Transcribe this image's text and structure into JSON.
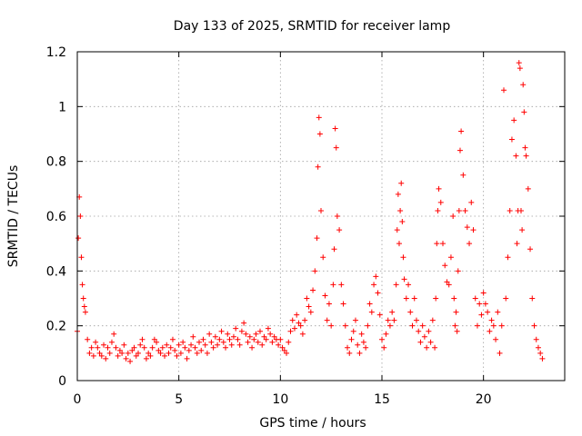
{
  "chart_data": {
    "type": "scatter",
    "title": "Day 133 of 2025, SRMTID for receiver lamp",
    "xlabel": "GPS time / hours",
    "ylabel": "SRMTID / TECUs",
    "xlim": [
      0,
      24
    ],
    "ylim": [
      0,
      1.2
    ],
    "x_ticks": [
      0,
      5,
      10,
      15,
      20
    ],
    "x_tick_labels": [
      "0",
      "5",
      "10",
      "15",
      "20"
    ],
    "y_ticks": [
      0,
      0.2,
      0.4,
      0.6,
      0.8,
      1.0,
      1.2
    ],
    "y_tick_labels": [
      "0",
      "0.2",
      "0.4",
      "0.6",
      "0.8",
      "1",
      "1.2"
    ],
    "grid": true,
    "marker": "plus",
    "color": "#ff0000",
    "series": [
      {
        "name": "SRMTID",
        "x": [
          0.0,
          0.05,
          0.1,
          0.15,
          0.2,
          0.25,
          0.3,
          0.35,
          0.4,
          0.5,
          0.6,
          0.7,
          0.8,
          0.9,
          1.0,
          1.1,
          1.2,
          1.3,
          1.4,
          1.5,
          1.6,
          1.7,
          1.8,
          1.9,
          2.0,
          2.1,
          2.2,
          2.3,
          2.4,
          2.5,
          2.6,
          2.7,
          2.8,
          2.9,
          3.0,
          3.1,
          3.2,
          3.3,
          3.4,
          3.5,
          3.6,
          3.7,
          3.8,
          3.9,
          4.0,
          4.1,
          4.2,
          4.3,
          4.4,
          4.5,
          4.6,
          4.7,
          4.8,
          4.9,
          5.0,
          5.1,
          5.2,
          5.3,
          5.4,
          5.5,
          5.6,
          5.7,
          5.8,
          5.9,
          6.0,
          6.1,
          6.2,
          6.3,
          6.4,
          6.5,
          6.6,
          6.7,
          6.8,
          6.9,
          7.0,
          7.1,
          7.2,
          7.3,
          7.4,
          7.5,
          7.6,
          7.7,
          7.8,
          7.9,
          8.0,
          8.1,
          8.2,
          8.3,
          8.4,
          8.5,
          8.6,
          8.7,
          8.8,
          8.9,
          9.0,
          9.1,
          9.2,
          9.3,
          9.4,
          9.5,
          9.6,
          9.7,
          9.8,
          9.9,
          10.0,
          10.1,
          10.2,
          10.3,
          10.4,
          10.5,
          10.6,
          10.7,
          10.8,
          10.9,
          11.0,
          11.1,
          11.2,
          11.3,
          11.4,
          11.5,
          11.6,
          11.7,
          11.8,
          11.85,
          11.9,
          11.95,
          12.0,
          12.1,
          12.2,
          12.3,
          12.4,
          12.5,
          12.6,
          12.65,
          12.7,
          12.75,
          12.8,
          12.9,
          13.0,
          13.1,
          13.2,
          13.3,
          13.4,
          13.5,
          13.6,
          13.7,
          13.8,
          13.9,
          14.0,
          14.1,
          14.2,
          14.3,
          14.4,
          14.5,
          14.6,
          14.7,
          14.8,
          14.9,
          15.0,
          15.1,
          15.2,
          15.3,
          15.4,
          15.5,
          15.6,
          15.7,
          15.75,
          15.8,
          15.85,
          15.9,
          15.95,
          16.0,
          16.05,
          16.1,
          16.2,
          16.3,
          16.4,
          16.5,
          16.6,
          16.7,
          16.8,
          16.9,
          17.0,
          17.1,
          17.2,
          17.3,
          17.4,
          17.5,
          17.6,
          17.65,
          17.7,
          17.75,
          17.8,
          17.9,
          18.0,
          18.1,
          18.2,
          18.3,
          18.4,
          18.5,
          18.55,
          18.6,
          18.65,
          18.7,
          18.75,
          18.8,
          18.85,
          18.9,
          19.0,
          19.1,
          19.2,
          19.3,
          19.4,
          19.5,
          19.6,
          19.7,
          19.8,
          19.9,
          20.0,
          20.1,
          20.2,
          20.3,
          20.4,
          20.5,
          20.6,
          20.7,
          20.8,
          20.9,
          21.0,
          21.1,
          21.2,
          21.3,
          21.4,
          21.5,
          21.6,
          21.65,
          21.7,
          21.75,
          21.8,
          21.85,
          21.9,
          21.95,
          22.0,
          22.05,
          22.1,
          22.2,
          22.3,
          22.4,
          22.5,
          22.6,
          22.7,
          22.8,
          22.9
        ],
        "y": [
          0.18,
          0.52,
          0.67,
          0.6,
          0.45,
          0.35,
          0.3,
          0.27,
          0.25,
          0.15,
          0.1,
          0.12,
          0.09,
          0.14,
          0.12,
          0.1,
          0.09,
          0.13,
          0.08,
          0.12,
          0.1,
          0.14,
          0.17,
          0.12,
          0.09,
          0.11,
          0.1,
          0.13,
          0.08,
          0.1,
          0.07,
          0.11,
          0.12,
          0.09,
          0.1,
          0.13,
          0.15,
          0.12,
          0.08,
          0.1,
          0.09,
          0.12,
          0.15,
          0.14,
          0.11,
          0.1,
          0.12,
          0.09,
          0.13,
          0.1,
          0.12,
          0.15,
          0.11,
          0.09,
          0.13,
          0.1,
          0.14,
          0.12,
          0.08,
          0.11,
          0.13,
          0.16,
          0.12,
          0.1,
          0.14,
          0.11,
          0.15,
          0.13,
          0.1,
          0.17,
          0.14,
          0.12,
          0.16,
          0.13,
          0.15,
          0.18,
          0.14,
          0.12,
          0.17,
          0.15,
          0.13,
          0.16,
          0.19,
          0.15,
          0.13,
          0.18,
          0.21,
          0.17,
          0.14,
          0.16,
          0.12,
          0.15,
          0.17,
          0.14,
          0.18,
          0.13,
          0.16,
          0.15,
          0.19,
          0.17,
          0.14,
          0.16,
          0.15,
          0.13,
          0.15,
          0.12,
          0.11,
          0.1,
          0.14,
          0.18,
          0.22,
          0.19,
          0.24,
          0.21,
          0.2,
          0.17,
          0.22,
          0.3,
          0.27,
          0.25,
          0.33,
          0.4,
          0.52,
          0.78,
          0.96,
          0.9,
          0.62,
          0.45,
          0.31,
          0.22,
          0.28,
          0.2,
          0.35,
          0.48,
          0.92,
          0.85,
          0.6,
          0.55,
          0.35,
          0.28,
          0.2,
          0.12,
          0.1,
          0.15,
          0.18,
          0.22,
          0.13,
          0.1,
          0.17,
          0.14,
          0.12,
          0.2,
          0.28,
          0.25,
          0.35,
          0.38,
          0.32,
          0.24,
          0.15,
          0.12,
          0.17,
          0.22,
          0.2,
          0.25,
          0.22,
          0.35,
          0.55,
          0.68,
          0.5,
          0.62,
          0.72,
          0.58,
          0.45,
          0.37,
          0.3,
          0.35,
          0.25,
          0.2,
          0.3,
          0.22,
          0.18,
          0.14,
          0.2,
          0.16,
          0.12,
          0.18,
          0.14,
          0.22,
          0.12,
          0.3,
          0.5,
          0.62,
          0.7,
          0.65,
          0.5,
          0.42,
          0.36,
          0.35,
          0.45,
          0.6,
          0.3,
          0.2,
          0.25,
          0.18,
          0.4,
          0.62,
          0.84,
          0.91,
          0.75,
          0.62,
          0.56,
          0.5,
          0.65,
          0.55,
          0.3,
          0.2,
          0.28,
          0.24,
          0.32,
          0.28,
          0.25,
          0.18,
          0.22,
          0.2,
          0.15,
          0.25,
          0.1,
          0.2,
          1.06,
          0.3,
          0.45,
          0.62,
          0.88,
          0.95,
          0.82,
          0.5,
          0.62,
          1.16,
          1.14,
          0.62,
          0.55,
          1.08,
          0.98,
          0.85,
          0.82,
          0.7,
          0.48,
          0.3,
          0.2,
          0.15,
          0.12,
          0.1,
          0.08
        ]
      }
    ]
  }
}
